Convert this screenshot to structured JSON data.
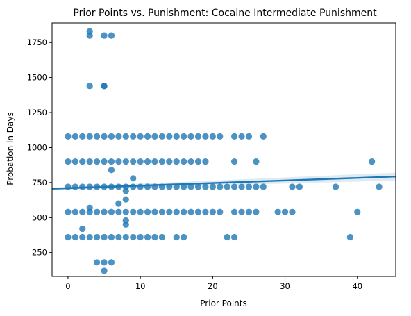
{
  "chart_data": {
    "type": "scatter",
    "title": "Prior Points vs. Punishment: Cocaine Intermediate Punishment",
    "xlabel": "Prior Points",
    "ylabel": "Probation in Days",
    "xlim": [
      -2.2,
      45.3
    ],
    "ylim": [
      80,
      1890
    ],
    "xticks": [
      0,
      10,
      20,
      30,
      40
    ],
    "xtick_labels": [
      "0",
      "10",
      "20",
      "30",
      "40"
    ],
    "yticks": [
      250,
      500,
      750,
      1000,
      1250,
      1500,
      1750
    ],
    "ytick_labels": [
      "250",
      "500",
      "750",
      "1000",
      "1250",
      "1500",
      "1750"
    ],
    "grid": false,
    "legend": "none",
    "point_color": "#1f77b4",
    "regression": {
      "x": [
        -2.2,
        45.3
      ],
      "y": [
        706,
        793
      ],
      "ci_lower": [
        697,
        765
      ],
      "ci_upper": [
        715,
        821
      ],
      "color": "#1f77b4"
    },
    "points": {
      "x": [
        0,
        1,
        2,
        3,
        4,
        5,
        6,
        7,
        8,
        9,
        10,
        11,
        12,
        13,
        14,
        15,
        16,
        17,
        18,
        19,
        20,
        21,
        23,
        24,
        25,
        27,
        0,
        1,
        2,
        3,
        4,
        5,
        6,
        7,
        8,
        9,
        10,
        11,
        12,
        13,
        14,
        15,
        16,
        17,
        18,
        19,
        23,
        26,
        0,
        1,
        2,
        3,
        4,
        5,
        6,
        7,
        8,
        9,
        10,
        11,
        12,
        13,
        14,
        15,
        16,
        17,
        18,
        19,
        20,
        21,
        22,
        23,
        24,
        25,
        26,
        27,
        31,
        32,
        37,
        43,
        0,
        1,
        2,
        3,
        4,
        5,
        6,
        7,
        8,
        9,
        10,
        11,
        12,
        13,
        14,
        15,
        16,
        17,
        18,
        19,
        20,
        21,
        23,
        24,
        25,
        26,
        29,
        30,
        31,
        40,
        0,
        1,
        2,
        3,
        4,
        5,
        6,
        7,
        8,
        9,
        10,
        11,
        12,
        13,
        15,
        16,
        22,
        23,
        39,
        3,
        3,
        5,
        6,
        5,
        5,
        3,
        6,
        9,
        8,
        3,
        7,
        8,
        8,
        2,
        8,
        4,
        5,
        6,
        5,
        42
      ],
      "y": [
        1080,
        1080,
        1080,
        1080,
        1080,
        1080,
        1080,
        1080,
        1080,
        1080,
        1080,
        1080,
        1080,
        1080,
        1080,
        1080,
        1080,
        1080,
        1080,
        1080,
        1080,
        1080,
        1080,
        1080,
        1080,
        1080,
        900,
        900,
        900,
        900,
        900,
        900,
        900,
        900,
        900,
        900,
        900,
        900,
        900,
        900,
        900,
        900,
        900,
        900,
        900,
        900,
        900,
        900,
        720,
        720,
        720,
        720,
        720,
        720,
        720,
        720,
        720,
        720,
        720,
        720,
        720,
        720,
        720,
        720,
        720,
        720,
        720,
        720,
        720,
        720,
        720,
        720,
        720,
        720,
        720,
        720,
        720,
        720,
        720,
        720,
        540,
        540,
        540,
        540,
        540,
        540,
        540,
        540,
        540,
        540,
        540,
        540,
        540,
        540,
        540,
        540,
        540,
        540,
        540,
        540,
        540,
        540,
        540,
        540,
        540,
        540,
        540,
        540,
        540,
        540,
        360,
        360,
        360,
        360,
        360,
        360,
        360,
        360,
        360,
        360,
        360,
        360,
        360,
        360,
        360,
        360,
        360,
        360,
        360,
        1830,
        1800,
        1800,
        1800,
        1440,
        1440,
        1440,
        840,
        780,
        690,
        570,
        600,
        630,
        480,
        420,
        450,
        180,
        180,
        180,
        120,
        900
      ]
    }
  }
}
